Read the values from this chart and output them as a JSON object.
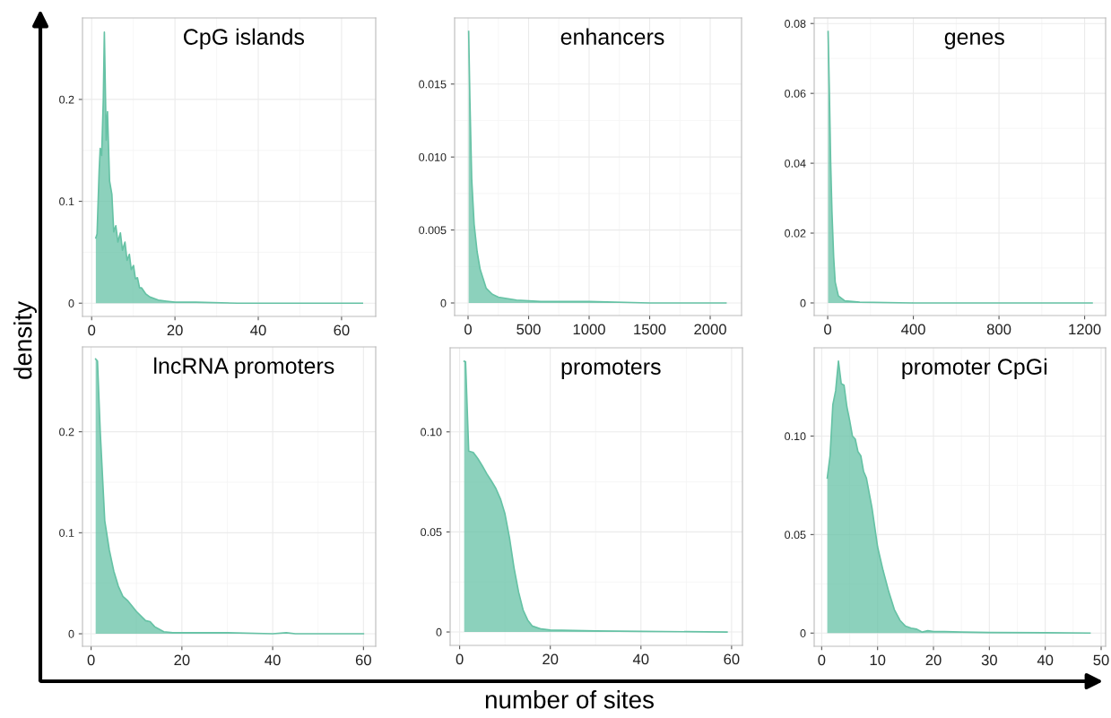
{
  "chart_data": [
    {
      "type": "area",
      "title": "CpG islands",
      "ylabel": "density",
      "xlim": [
        -2.2,
        68.2
      ],
      "xticks": [
        0,
        20,
        40,
        60
      ],
      "ylim": [
        -0.013,
        0.28
      ],
      "yticks": [
        0,
        0.1,
        0.2
      ],
      "grid": true,
      "series": [
        {
          "color": "#66c2a5",
          "x": [
            1,
            1.3,
            1.8,
            2.05,
            2.4,
            2.8,
            3.05,
            3.5,
            3.8,
            4.3,
            4.85,
            5.3,
            5.8,
            6.3,
            6.9,
            7.4,
            8,
            8.5,
            9.05,
            9.5,
            10.05,
            10.5,
            11,
            11.5,
            12,
            13,
            14,
            16,
            18,
            20,
            25,
            35,
            50,
            65
          ],
          "values": [
            0.064,
            0.068,
            0.13,
            0.152,
            0.145,
            0.2,
            0.266,
            0.16,
            0.188,
            0.12,
            0.107,
            0.07,
            0.076,
            0.06,
            0.069,
            0.052,
            0.06,
            0.042,
            0.048,
            0.033,
            0.037,
            0.024,
            0.025,
            0.015,
            0.015,
            0.009,
            0.006,
            0.003,
            0.002,
            0.001,
            0.001,
            0,
            0,
            0
          ]
        }
      ]
    },
    {
      "type": "area",
      "title": "enhancers",
      "xlim": [
        -111,
        2259
      ],
      "xticks": [
        0,
        500,
        1000,
        1500,
        2000
      ],
      "ylim": [
        -0.00086,
        0.01953
      ],
      "yticks": [
        {
          "value": 0,
          "label": "0"
        },
        {
          "value": 0.005,
          "label": "0.005"
        },
        {
          "value": 0.01,
          "label": "0.010"
        },
        {
          "value": 0.015,
          "label": "0.015"
        }
      ],
      "grid": true,
      "series": [
        {
          "color": "#66c2a5",
          "x": [
            5,
            15,
            30,
            50,
            75,
            100,
            150,
            200,
            250,
            400,
            600,
            1000,
            1500,
            2130
          ],
          "values": [
            0.0186,
            0.014,
            0.0085,
            0.0054,
            0.0035,
            0.0023,
            0.001,
            0.0006,
            0.0004,
            0.0002,
            0.0001,
            0.0001,
            0,
            0
          ]
        }
      ]
    },
    {
      "type": "area",
      "title": "genes",
      "xlim": [
        -63,
        1298
      ],
      "xticks": [
        0,
        400,
        800,
        1200
      ],
      "ylim": [
        -0.0036,
        0.0816
      ],
      "yticks": [
        0,
        0.02,
        0.04,
        0.06,
        0.08
      ],
      "grid": true,
      "series": [
        {
          "color": "#66c2a5",
          "x": [
            2,
            8,
            14,
            20,
            28,
            35,
            50,
            80,
            150,
            400,
            1235
          ],
          "values": [
            0.0777,
            0.06,
            0.04,
            0.026,
            0.013,
            0.006,
            0.002,
            0.0006,
            0.0002,
            0,
            0
          ]
        }
      ]
    },
    {
      "type": "area",
      "title": "lncRNA promoters",
      "xlim": [
        -1.9,
        62.7
      ],
      "xticks": [
        0,
        20,
        40,
        60
      ],
      "ylim": [
        -0.0124,
        0.284
      ],
      "yticks": [
        0,
        0.1,
        0.2
      ],
      "grid": true,
      "series": [
        {
          "color": "#66c2a5",
          "x": [
            1,
            1.4,
            2,
            3,
            4,
            5,
            6,
            7,
            8,
            10,
            12,
            13,
            14,
            16,
            18,
            25,
            30,
            40,
            43,
            45,
            60
          ],
          "values": [
            0.272,
            0.27,
            0.201,
            0.112,
            0.083,
            0.062,
            0.047,
            0.037,
            0.033,
            0.022,
            0.013,
            0.012,
            0.007,
            0.002,
            0.001,
            0.001,
            0.001,
            0,
            0.001,
            0,
            0
          ]
        }
      ]
    },
    {
      "type": "area",
      "title": "promoters",
      "xlabel": "number of sites",
      "xlim": [
        -2.1,
        62.4
      ],
      "xticks": [
        0,
        20,
        40,
        60
      ],
      "ylim": [
        -0.0067,
        0.142
      ],
      "yticks": [
        {
          "value": 0,
          "label": "0"
        },
        {
          "value": 0.05,
          "label": "0.05"
        },
        {
          "value": 0.1,
          "label": "0.10"
        }
      ],
      "grid": true,
      "series": [
        {
          "color": "#66c2a5",
          "x": [
            1,
            1.3,
            2,
            3,
            4,
            5,
            6,
            7,
            8,
            9,
            10,
            11,
            12,
            13,
            14,
            15,
            16,
            18,
            20,
            30,
            40,
            59
          ],
          "values": [
            0.1353,
            0.135,
            0.0904,
            0.0897,
            0.0867,
            0.083,
            0.079,
            0.0755,
            0.0717,
            0.0665,
            0.059,
            0.047,
            0.032,
            0.02,
            0.011,
            0.006,
            0.003,
            0.0015,
            0.001,
            0.0005,
            0.0003,
            0
          ]
        }
      ]
    },
    {
      "type": "area",
      "title": "promoter CpGi",
      "xlim": [
        -1.34,
        50.8
      ],
      "xticks": [
        0,
        10,
        20,
        30,
        40,
        50
      ],
      "ylim": [
        -0.0067,
        0.1448
      ],
      "yticks": [
        {
          "value": 0,
          "label": "0"
        },
        {
          "value": 0.05,
          "label": "0.05"
        },
        {
          "value": 0.1,
          "label": "0.10"
        }
      ],
      "grid": true,
      "series": [
        {
          "color": "#66c2a5",
          "x": [
            1,
            1.5,
            2,
            2.5,
            3,
            3.5,
            4,
            4.5,
            5,
            5.5,
            6,
            6.5,
            7,
            7.5,
            8,
            9,
            10,
            11,
            12,
            13,
            14,
            15,
            16,
            17,
            18,
            19,
            20,
            22,
            25,
            30,
            40,
            48
          ],
          "values": [
            0.0787,
            0.09,
            0.116,
            0.123,
            0.138,
            0.1266,
            0.1258,
            0.115,
            0.108,
            0.1,
            0.0985,
            0.092,
            0.09,
            0.082,
            0.0787,
            0.0635,
            0.0438,
            0.0316,
            0.021,
            0.0119,
            0.0065,
            0.0035,
            0.0025,
            0.002,
            0.0005,
            0.0012,
            0.0008,
            0.0008,
            0.0005,
            0.0003,
            0.0002,
            0
          ]
        }
      ]
    }
  ]
}
